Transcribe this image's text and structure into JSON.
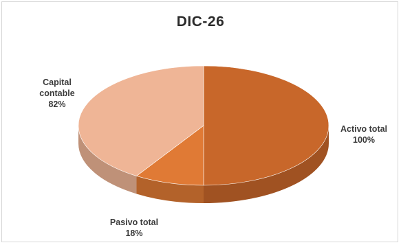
{
  "chart_data": {
    "type": "pie",
    "title": "DIC-26",
    "slices": [
      {
        "label": "Activo total",
        "pct_text": "100%",
        "value": 100,
        "color": "#c8672a"
      },
      {
        "label": "Pasivo total",
        "pct_text": "18%",
        "value": 18,
        "color": "#e07a35"
      },
      {
        "label": "Capital contable",
        "label_line1": "Capital",
        "label_line2": "contable",
        "pct_text": "82%",
        "value": 82,
        "color": "#efb596"
      }
    ],
    "legend": "none",
    "style": "3d-pie"
  }
}
